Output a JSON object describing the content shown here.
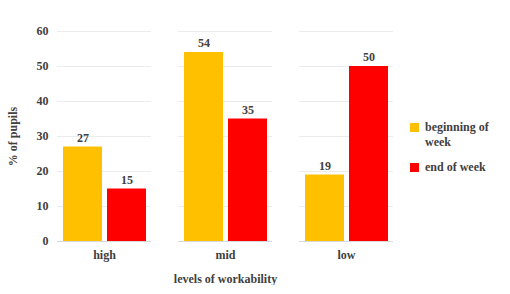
{
  "chart_data": {
    "type": "bar",
    "x_label": "levels of workability",
    "y_label": "% of pupils",
    "categories": [
      "high",
      "mid",
      "low"
    ],
    "series": [
      {
        "name": "beginning of week",
        "color": "#ffc000",
        "values": [
          27,
          54,
          19
        ]
      },
      {
        "name": "end of week",
        "color": "#ff0000",
        "values": [
          15,
          35,
          50
        ]
      }
    ],
    "ylim": [
      0,
      60
    ],
    "yticks": [
      0,
      10,
      20,
      30,
      40,
      50,
      60
    ],
    "grid": true,
    "legend": "right",
    "data_labels": true
  }
}
